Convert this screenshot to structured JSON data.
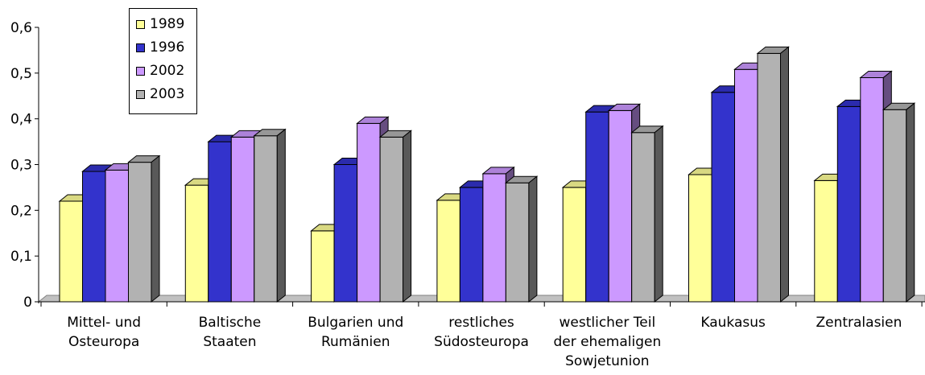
{
  "chart_data": {
    "type": "bar",
    "categories": [
      "Mittel- und\nOsteuropa",
      "Baltische\nStaaten",
      "Bulgarien und\nRumänien",
      "restliches\nSüdosteuropa",
      "westlicher Teil\nder ehemaligen\nSowjetunion",
      "Kaukasus",
      "Zentralasien"
    ],
    "series": [
      {
        "name": "1989",
        "color": "#FFFF99",
        "values": [
          0.22,
          0.255,
          0.155,
          0.222,
          0.25,
          0.278,
          0.265
        ]
      },
      {
        "name": "1996",
        "color": "#3333CC",
        "values": [
          0.285,
          0.35,
          0.3,
          0.25,
          0.415,
          0.458,
          0.427
        ]
      },
      {
        "name": "2002",
        "color": "#CC99FF",
        "values": [
          0.288,
          0.36,
          0.39,
          0.28,
          0.418,
          0.508,
          0.49
        ]
      },
      {
        "name": "2003",
        "color": "#B2B2B2",
        "values": [
          0.305,
          0.363,
          0.36,
          0.26,
          0.37,
          0.543,
          0.42
        ]
      }
    ],
    "yticks": [
      "0",
      "0,1",
      "0,2",
      "0,3",
      "0,4",
      "0,5",
      "0,6"
    ],
    "ylim": [
      0,
      0.6
    ],
    "grid": false,
    "legend_position": "top-left",
    "three_d": true
  }
}
